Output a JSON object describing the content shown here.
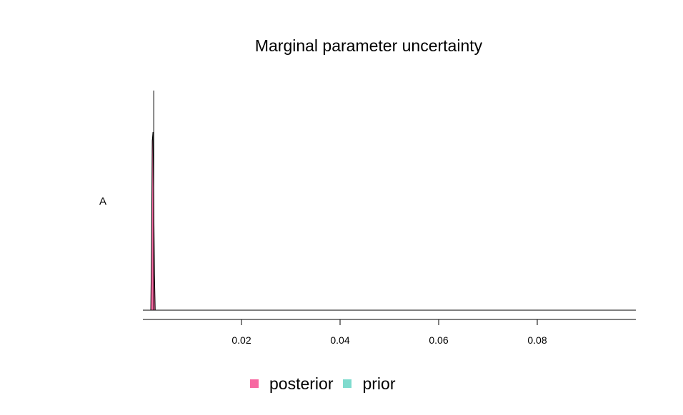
{
  "chart_data": {
    "type": "area",
    "title": "Marginal parameter uncertainty",
    "ylabel": "A",
    "xlim": [
      0,
      0.1
    ],
    "x_ticks": [
      {
        "value": 0.02,
        "label": "0.02"
      },
      {
        "value": 0.04,
        "label": "0.04"
      },
      {
        "value": 0.06,
        "label": "0.06"
      },
      {
        "value": 0.08,
        "label": "0.08"
      }
    ],
    "colors": {
      "posterior": "#f768a1",
      "prior": "#7fdbce",
      "outline": "#000000"
    },
    "series": [
      {
        "name": "posterior",
        "x": [
          0.0016,
          0.00175,
          0.0019,
          0.00205,
          0.0022,
          0.00235,
          0.0025
        ],
        "density": [
          0.0,
          0.35,
          0.95,
          1.0,
          0.62,
          0.2,
          0.0
        ]
      },
      {
        "name": "prior",
        "x": [],
        "density": []
      }
    ],
    "prior_marker_x": 0.0022,
    "legend": {
      "placement": "bottom",
      "items": [
        {
          "label": "posterior",
          "color": "#f768a1"
        },
        {
          "label": "prior",
          "color": "#7fdbce"
        }
      ]
    }
  }
}
